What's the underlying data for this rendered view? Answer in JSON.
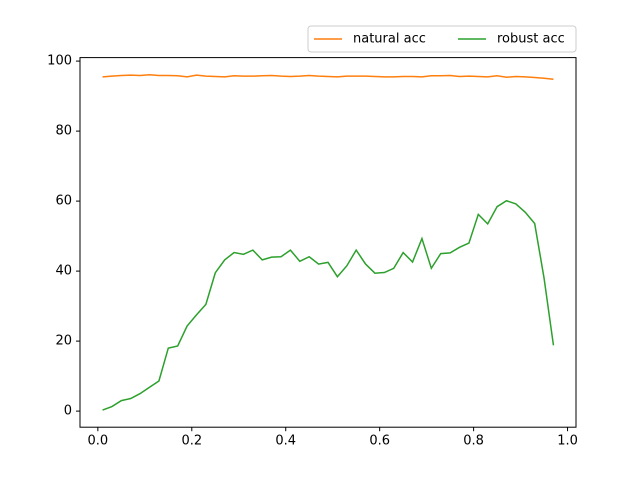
{
  "chart_data": {
    "type": "line",
    "x": [
      0.01,
      0.03,
      0.05,
      0.07,
      0.09,
      0.11,
      0.13,
      0.15,
      0.17,
      0.19,
      0.21,
      0.23,
      0.25,
      0.27,
      0.29,
      0.31,
      0.33,
      0.35,
      0.37,
      0.39,
      0.41,
      0.43,
      0.45,
      0.47,
      0.49,
      0.51,
      0.53,
      0.55,
      0.57,
      0.59,
      0.61,
      0.63,
      0.65,
      0.67,
      0.69,
      0.71,
      0.73,
      0.75,
      0.77,
      0.79,
      0.81,
      0.83,
      0.85,
      0.87,
      0.89,
      0.91,
      0.93,
      0.95,
      0.97
    ],
    "series": [
      {
        "name": "natural acc",
        "color": "#ff7f0e",
        "values": [
          95.5,
          95.7,
          95.9,
          96.0,
          95.9,
          96.1,
          95.9,
          95.9,
          95.8,
          95.5,
          96.0,
          95.7,
          95.6,
          95.5,
          95.8,
          95.7,
          95.7,
          95.8,
          95.9,
          95.7,
          95.6,
          95.7,
          95.9,
          95.7,
          95.6,
          95.5,
          95.7,
          95.7,
          95.7,
          95.6,
          95.5,
          95.5,
          95.6,
          95.6,
          95.5,
          95.8,
          95.8,
          95.9,
          95.6,
          95.7,
          95.6,
          95.5,
          95.8,
          95.4,
          95.6,
          95.5,
          95.3,
          95.1,
          94.8
        ]
      },
      {
        "name": "robust acc",
        "color": "#2ca02c",
        "values": [
          0.3,
          1.3,
          3.0,
          3.6,
          5.0,
          6.8,
          8.6,
          18.0,
          18.6,
          24.3,
          27.5,
          30.5,
          39.5,
          43.2,
          45.3,
          44.8,
          46.0,
          43.2,
          44.0,
          44.1,
          46.0,
          42.8,
          44.1,
          42.0,
          42.5,
          38.4,
          41.5,
          46.0,
          42.0,
          39.4,
          39.6,
          40.8,
          45.3,
          42.6,
          49.3,
          40.8,
          45.0,
          45.2,
          46.8,
          48.0,
          56.2,
          53.5,
          58.4,
          60.1,
          59.2,
          56.8,
          53.6,
          38.0,
          18.8
        ]
      }
    ],
    "xlim": [
      -0.038,
      1.018
    ],
    "xticks": [
      {
        "value": 0,
        "label": "0.0"
      },
      0.2,
      0.4,
      0.6,
      0.8,
      {
        "value": 1,
        "label": "1.0"
      }
    ],
    "ylim": [
      -4.6,
      101
    ],
    "yticks": [
      0,
      20,
      40,
      60,
      80,
      100
    ],
    "legend": "top-right-outside"
  }
}
